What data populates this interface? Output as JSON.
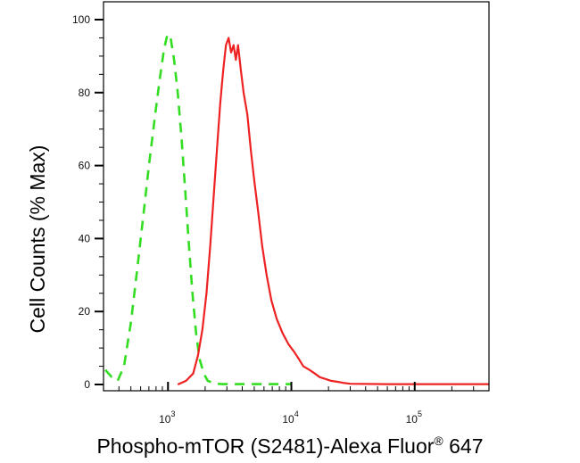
{
  "chart_data": {
    "type": "line",
    "title": "",
    "xlabel": "Phospho-mTOR (S2481)-Alexa Fluor",
    "xlabel_superscript": "®",
    "xlabel_suffix": " 647",
    "ylabel": "Cell Counts (% Max)",
    "xscale": "log",
    "xlim": [
      300,
      400000
    ],
    "ylim": [
      0,
      105
    ],
    "grid": false,
    "legend": "none",
    "y_ticks": [
      {
        "value": 0,
        "label": "0"
      },
      {
        "value": 20,
        "label": "20"
      },
      {
        "value": 40,
        "label": "40"
      },
      {
        "value": 60,
        "label": "60"
      },
      {
        "value": 80,
        "label": "80"
      },
      {
        "value": 100,
        "label": "100"
      }
    ],
    "x_ticks": [
      {
        "value": 1000,
        "base": "10",
        "exp": "3"
      },
      {
        "value": 10000,
        "base": "10",
        "exp": "4"
      },
      {
        "value": 100000,
        "base": "10",
        "exp": "5"
      }
    ],
    "series": [
      {
        "color": "#33dd22",
        "style": "dashed",
        "x": [
          310,
          350,
          390,
          440,
          500,
          560,
          630,
          700,
          780,
          860,
          930,
          990,
          1050,
          1120,
          1200,
          1290,
          1380,
          1480,
          1580,
          1690,
          1800,
          1950,
          2100,
          2300,
          2500,
          2750,
          3000,
          3500,
          4500,
          6000,
          10000
        ],
        "y": [
          4,
          2,
          1,
          5,
          17,
          31,
          46,
          60,
          73,
          84,
          92,
          96,
          95,
          89,
          80,
          67,
          53,
          38,
          25,
          14,
          7,
          3,
          1,
          0.5,
          0.2,
          0.1,
          0.1,
          0.1,
          0.1,
          0.1,
          0.1
        ]
      },
      {
        "color": "#ee2222",
        "style": "solid",
        "x": [
          1200,
          1400,
          1600,
          1750,
          1900,
          2050,
          2200,
          2350,
          2500,
          2650,
          2800,
          2950,
          3100,
          3250,
          3400,
          3550,
          3700,
          3900,
          4100,
          4400,
          4700,
          5000,
          5400,
          5800,
          6300,
          6900,
          7600,
          8500,
          9500,
          10500,
          11500,
          12500,
          14000,
          15500,
          17000,
          19000,
          21000,
          24000,
          27000,
          30000,
          60000,
          150000,
          400000
        ],
        "y": [
          0,
          1,
          3,
          8,
          15,
          25,
          38,
          52,
          65,
          77,
          86,
          93,
          95,
          91,
          93,
          89,
          93,
          86,
          80,
          74,
          64,
          56,
          47,
          38,
          30,
          23,
          18,
          14,
          11,
          9,
          7,
          5,
          4,
          3,
          2,
          1.5,
          1,
          0.7,
          0.4,
          0.2,
          0.1,
          0.1,
          0.1
        ]
      }
    ]
  },
  "colors": {
    "frame": "#000000",
    "background": "#ffffff"
  }
}
